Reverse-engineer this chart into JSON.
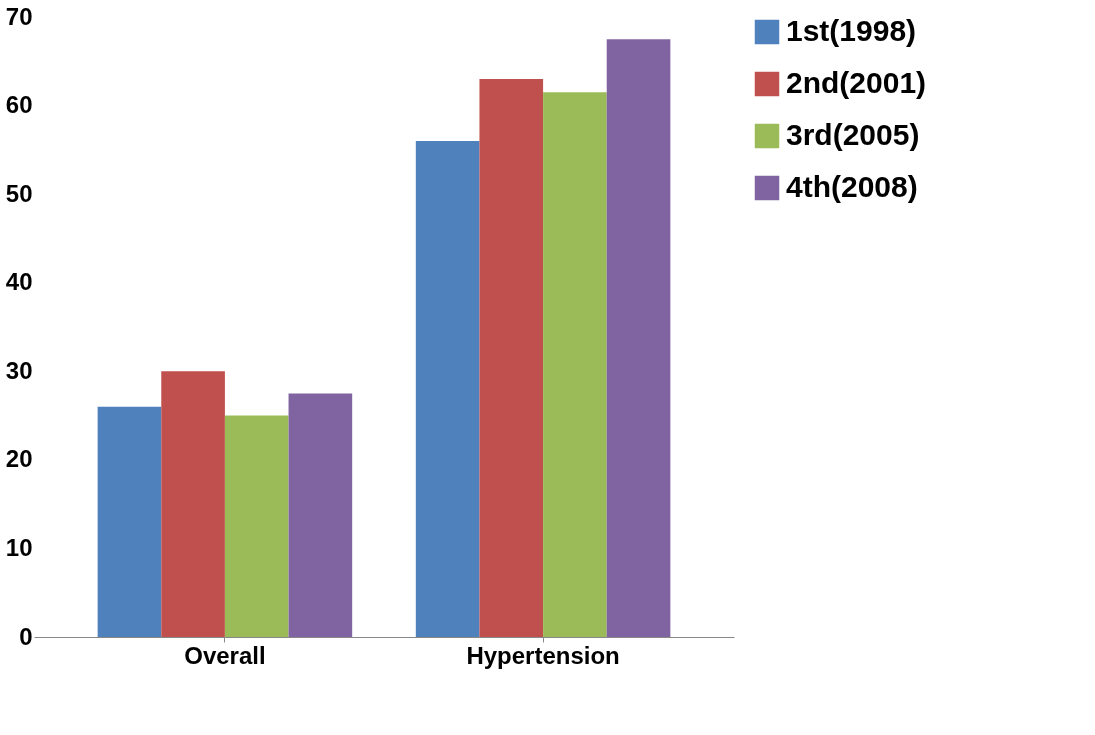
{
  "chart_data": {
    "type": "bar",
    "categories": [
      "Overall",
      "Hypertension"
    ],
    "series": [
      {
        "name": "1st(1998)",
        "color": "#4f81bd",
        "values": [
          26,
          56
        ]
      },
      {
        "name": "2nd(2001)",
        "color": "#c0504d",
        "values": [
          30,
          63
        ]
      },
      {
        "name": "3rd(2005)",
        "color": "#9bbb59",
        "values": [
          25,
          61.5
        ]
      },
      {
        "name": "4th(2008)",
        "color": "#8064a2",
        "values": [
          27.5,
          67.5
        ]
      }
    ],
    "ylim": [
      0,
      70
    ],
    "yticks": [
      0,
      10,
      20,
      30,
      40,
      50,
      60,
      70
    ],
    "grid": false,
    "legend": "right"
  }
}
